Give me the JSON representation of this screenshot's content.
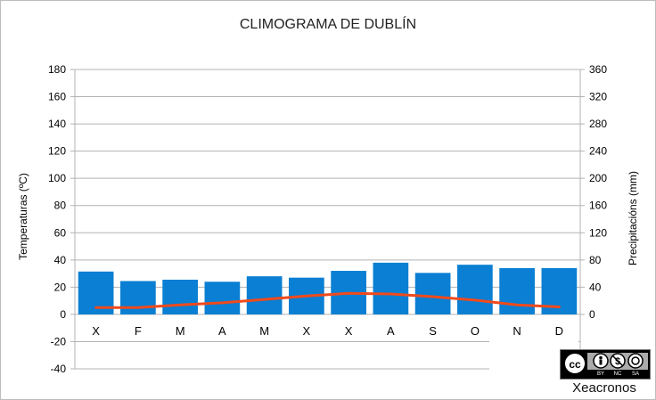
{
  "chart_data": {
    "type": "bar",
    "title": "CLIMOGRAMA DE DUBLÍN",
    "categories": [
      "X",
      "F",
      "M",
      "A",
      "M",
      "X",
      "X",
      "A",
      "S",
      "O",
      "N",
      "D"
    ],
    "ylabel_left": "Temperaturas (ºC)",
    "ylabel_right": "Precipitacións (mm)",
    "ylim_left": [
      -40,
      180
    ],
    "ylim_right": [
      0,
      360
    ],
    "yticks_left": [
      "180",
      "160",
      "140",
      "120",
      "100",
      "80",
      "60",
      "40",
      "20",
      "0",
      "-20",
      "-40"
    ],
    "yticks_right": [
      "360",
      "320",
      "280",
      "240",
      "200",
      "160",
      "120",
      "80",
      "40",
      "0"
    ],
    "grid": true,
    "series": [
      {
        "type": "bar",
        "axis": "right",
        "color": "#0a7fd3",
        "values": [
          63,
          49,
          51,
          48,
          56,
          54,
          64,
          76,
          61,
          73,
          68,
          68
        ]
      },
      {
        "type": "line",
        "axis": "left",
        "color": "#f04a1c",
        "values": [
          5,
          5,
          7,
          8.5,
          11,
          13.5,
          15.5,
          15,
          13,
          10.5,
          7,
          5.5
        ]
      }
    ]
  },
  "license": {
    "badge": "CC BY NC SA",
    "author": "Xeacronos"
  }
}
